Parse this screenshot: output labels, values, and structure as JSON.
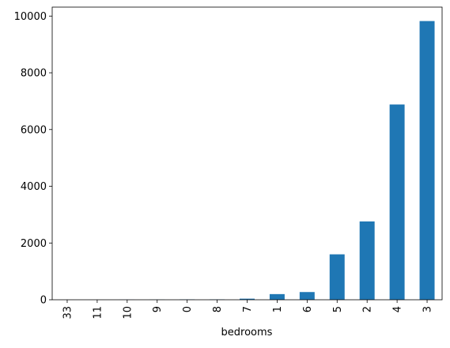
{
  "chart_data": {
    "type": "bar",
    "x_label": "bedrooms",
    "categories": [
      "33",
      "11",
      "10",
      "9",
      "0",
      "8",
      "7",
      "1",
      "6",
      "5",
      "2",
      "4",
      "3"
    ],
    "values": [
      1,
      1,
      3,
      6,
      13,
      13,
      38,
      199,
      272,
      1601,
      2760,
      6882,
      9824
    ],
    "color": "#1f77b4",
    "ylim": [
      0,
      10315.2
    ],
    "yticks": [
      0,
      2000,
      4000,
      6000,
      8000,
      10000
    ],
    "grid": false
  }
}
